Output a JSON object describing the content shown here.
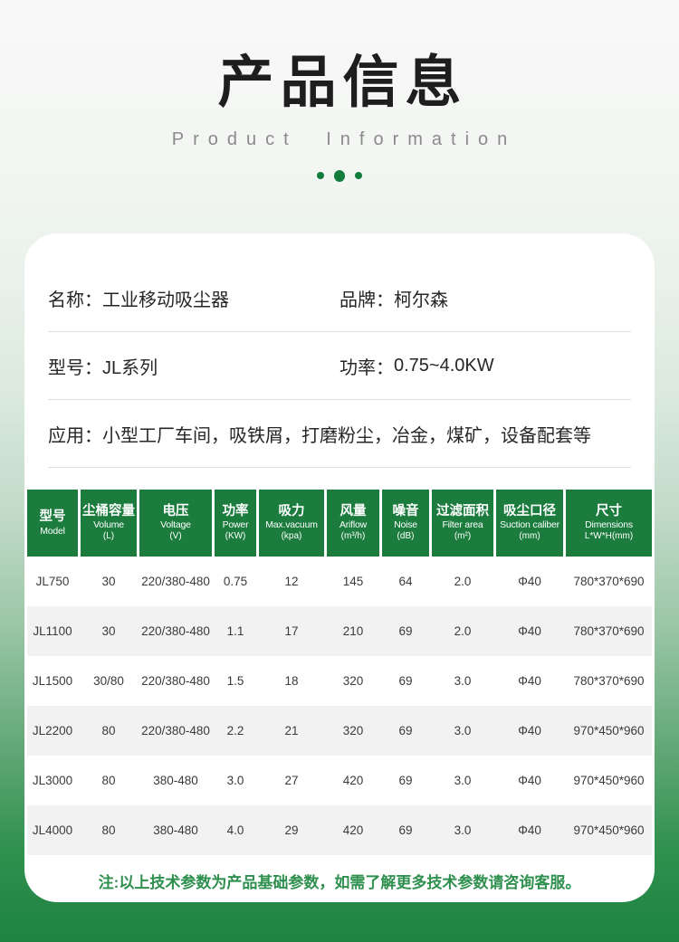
{
  "header": {
    "title": "产品信息",
    "subtitle": "Product Information"
  },
  "info": {
    "fields": [
      {
        "label": "名称：",
        "value": "工业移动吸尘器"
      },
      {
        "label": "品牌：",
        "value": "柯尔森"
      },
      {
        "label": "型号：",
        "value": "JL系列"
      },
      {
        "label": "功率：",
        "value": "0.75~4.0KW"
      },
      {
        "label": "应用：",
        "value": "小型工厂车间，吸铁屑，打磨粉尘，冶金，煤矿，设备配套等"
      }
    ]
  },
  "table": {
    "headers": [
      {
        "cn": "型号",
        "en": "Model",
        "unit": ""
      },
      {
        "cn": "尘桶容量",
        "en": "Volume",
        "unit": "(L)"
      },
      {
        "cn": "电压",
        "en": "Voltage",
        "unit": "(V)"
      },
      {
        "cn": "功率",
        "en": "Power",
        "unit": "(KW)"
      },
      {
        "cn": "吸力",
        "en": "Max.vacuum",
        "unit": "(kpa)"
      },
      {
        "cn": "风量",
        "en": "Ariflow",
        "unit": "(m³/h)"
      },
      {
        "cn": "噪音",
        "en": "Noise",
        "unit": "(dB)"
      },
      {
        "cn": "过滤面积",
        "en": "Filter area",
        "unit": "(m²)"
      },
      {
        "cn": "吸尘口径",
        "en": "Suction caliber",
        "unit": "(mm)"
      },
      {
        "cn": "尺寸",
        "en": "Dimensions",
        "unit": "L*W*H(mm)"
      }
    ],
    "rows": [
      [
        "JL750",
        "30",
        "220/380-480",
        "0.75",
        "12",
        "145",
        "64",
        "2.0",
        "Φ40",
        "780*370*690"
      ],
      [
        "JL1100",
        "30",
        "220/380-480",
        "1.1",
        "17",
        "210",
        "69",
        "2.0",
        "Φ40",
        "780*370*690"
      ],
      [
        "JL1500",
        "30/80",
        "220/380-480",
        "1.5",
        "18",
        "320",
        "69",
        "3.0",
        "Φ40",
        "780*370*690"
      ],
      [
        "JL2200",
        "80",
        "220/380-480",
        "2.2",
        "21",
        "320",
        "69",
        "3.0",
        "Φ40",
        "970*450*960"
      ],
      [
        "JL3000",
        "80",
        "380-480",
        "3.0",
        "27",
        "420",
        "69",
        "3.0",
        "Φ40",
        "970*450*960"
      ],
      [
        "JL4000",
        "80",
        "380-480",
        "4.0",
        "29",
        "420",
        "69",
        "3.0",
        "Φ40",
        "970*450*960"
      ]
    ]
  },
  "note": "注:以上技术参数为产品基础参数，如需了解更多技术参数请咨询客服。",
  "colors": {
    "brand_green": "#1b7c3d",
    "note_green": "#2e8f4e",
    "footer_green": "#1d8242",
    "stripe_gray": "#f2f2f2",
    "title_black": "#1e1e1e",
    "subtitle_gray": "#8a8a8a"
  }
}
